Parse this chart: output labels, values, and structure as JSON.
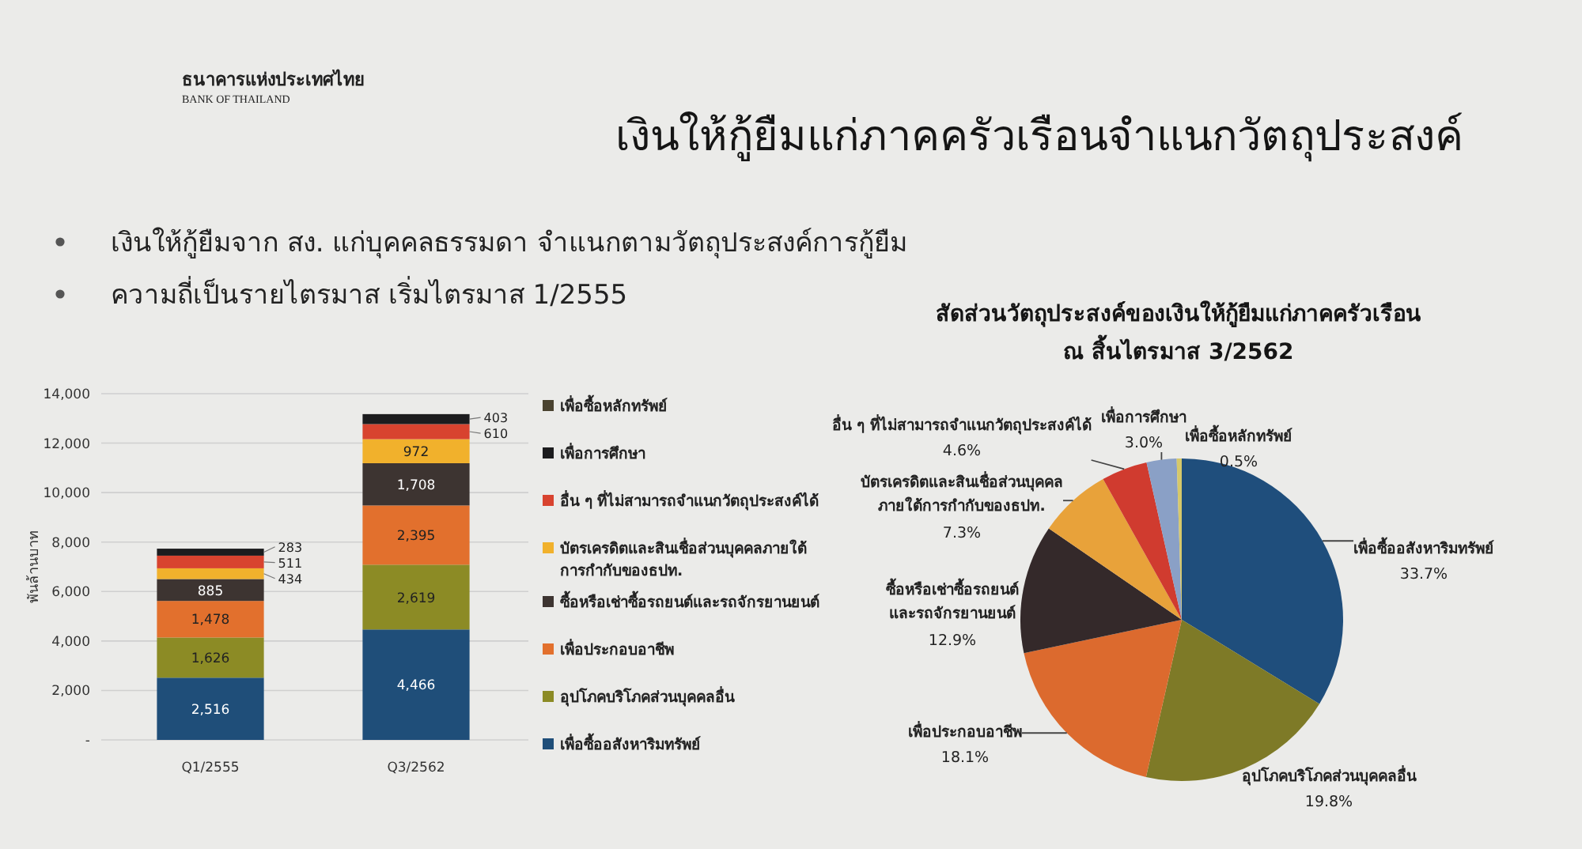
{
  "chart_data": [
    {
      "type": "other",
      "title": "เงินให้กู้ยืมแก่ภาคครัวเรือนจำแนกวัตถุประสงค์",
      "annotations": [
        "ธนาคารแห่งประเทศไทย",
        "BANK OF THAILAND",
        "เงินให้กู้ยืมจาก สง. แก่บุคคลธรรมดา จำแนกตามวัตถุประสงค์การกู้ยืม",
        "ความถี่เป็นรายไตรมาส เริ่มไตรมาส 1/2555"
      ]
    },
    {
      "type": "bar",
      "stacked": true,
      "categories": [
        "Q1/2555",
        "Q3/2562"
      ],
      "ylabel": "พันล้านบาท",
      "ylim": [
        0,
        14000
      ],
      "yticks": [
        {
          "value": 0,
          "label": "-"
        },
        {
          "value": 2000,
          "label": "2,000"
        },
        {
          "value": 4000,
          "label": "4,000"
        },
        {
          "value": 6000,
          "label": "6,000"
        },
        {
          "value": 8000,
          "label": "8,000"
        },
        {
          "value": 10000,
          "label": "10,000"
        },
        {
          "value": 12000,
          "label": "12,000"
        },
        {
          "value": 14000,
          "label": "14,000"
        }
      ],
      "grid": "y",
      "legend": "right",
      "series": [
        {
          "name": "เพื่อซื้ออสังหาริมทรัพย์",
          "color": "#1f4e79",
          "values": [
            2516,
            4466
          ],
          "value_labels": [
            "2,516",
            "4,466"
          ]
        },
        {
          "name": "อุปโภคบริโภคส่วนบุคคลอื่น",
          "color": "#8c8b25",
          "values": [
            1626,
            2619
          ],
          "value_labels": [
            "1,626",
            "2,619"
          ]
        },
        {
          "name": "เพื่อประกอบอาชีพ",
          "color": "#e2702d",
          "values": [
            1478,
            2395
          ],
          "value_labels": [
            "1,478",
            "2,395"
          ]
        },
        {
          "name": "ซื้อหรือเช่าซื้อรถยนต์และรถจักรยานยนต์",
          "color": "#3d3431",
          "values": [
            885,
            1708
          ],
          "value_labels": [
            "885",
            "1,708"
          ]
        },
        {
          "name": "บัตรเครดิตและสินเชื่อส่วนบุคคลภายใต้การกำกับของธปท.",
          "color": "#f1b12c",
          "values": [
            434,
            972
          ],
          "value_labels": [
            "434",
            "972"
          ]
        },
        {
          "name": "อื่น ๆ ที่ไม่สามารถจำแนกวัตถุประสงค์ได้",
          "color": "#d8432f",
          "values": [
            511,
            610
          ],
          "value_labels": [
            "511",
            "610"
          ]
        },
        {
          "name": "เพื่อการศึกษา",
          "color": "#1c1c1e",
          "values": [
            283,
            403
          ],
          "value_labels": [
            "283",
            "403"
          ]
        },
        {
          "name": "เพื่อซื้อหลักทรัพย์",
          "color": "#4a4330",
          "values": [
            null,
            null
          ]
        }
      ]
    },
    {
      "type": "pie",
      "title": "สัดส่วนวัตถุประสงค์ของเงินให้กู้ยืมแก่ภาคครัวเรือน",
      "subtitle": "ณ สิ้นไตรมาส 3/2562",
      "categories": [
        "เพื่อซื้ออสังหาริมทรัพย์",
        "อุปโภคบริโภคส่วนบุคคลอื่น",
        "เพื่อประกอบอาชีพ",
        "ซื้อหรือเช่าซื้อรถยนต์และรถจักรยานยนต์",
        "บัตรเครดิตและสินเชื่อส่วนบุคคลภายใต้การกำกับของธปท.",
        "อื่น ๆ ที่ไม่สามารถจำแนกวัตถุประสงค์ได้",
        "เพื่อการศึกษา",
        "เพื่อซื้อหลักทรัพย์"
      ],
      "values": [
        33.7,
        19.8,
        18.1,
        12.9,
        7.3,
        4.6,
        3.0,
        0.5
      ],
      "value_labels": [
        "33.7%",
        "19.8%",
        "18.1%",
        "12.9%",
        "7.3%",
        "4.6%",
        "3.0%",
        "0.5%"
      ],
      "colors": [
        "#1f4e7c",
        "#7e7a27",
        "#dc6a2e",
        "#34292a",
        "#e8a23a",
        "#d03b2f",
        "#8aa0c6",
        "#d6c86a"
      ]
    }
  ]
}
